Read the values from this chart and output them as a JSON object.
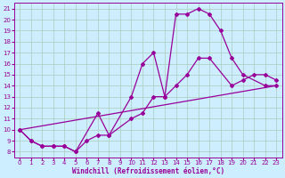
{
  "xlabel": "Windchill (Refroidissement éolien,°C)",
  "bg_color": "#cceeff",
  "line_color": "#990099",
  "grid_color": "#aaccbb",
  "xlim": [
    -0.5,
    23.5
  ],
  "ylim": [
    7.5,
    21.5
  ],
  "xticks": [
    0,
    1,
    2,
    3,
    4,
    5,
    6,
    7,
    8,
    9,
    10,
    11,
    12,
    13,
    14,
    15,
    16,
    17,
    18,
    19,
    20,
    21,
    22,
    23
  ],
  "yticks": [
    8,
    9,
    10,
    11,
    12,
    13,
    14,
    15,
    16,
    17,
    18,
    19,
    20,
    21
  ],
  "curve1_x": [
    0,
    1,
    2,
    3,
    4,
    5,
    7,
    8,
    10,
    11,
    12,
    13,
    14,
    15,
    16,
    17,
    18,
    19,
    20,
    22,
    23
  ],
  "curve1_y": [
    10,
    9,
    8.5,
    8.5,
    8.5,
    8,
    11.5,
    9.5,
    13,
    16,
    17,
    13,
    20.5,
    20.5,
    21,
    20.5,
    19,
    16.5,
    15,
    14,
    14
  ],
  "curve2_x": [
    0,
    1,
    2,
    3,
    4,
    5,
    6,
    7,
    8,
    10,
    11,
    12,
    13,
    14,
    15,
    16,
    17,
    19,
    20,
    21,
    22,
    23
  ],
  "curve2_y": [
    10,
    9,
    8.5,
    8.5,
    8.5,
    8,
    9,
    9.5,
    9.5,
    11,
    11.5,
    13,
    13,
    14,
    15,
    16.5,
    16.5,
    14,
    14.5,
    15,
    15,
    14.5
  ],
  "curve3_x": [
    0,
    23
  ],
  "curve3_y": [
    10,
    14
  ]
}
